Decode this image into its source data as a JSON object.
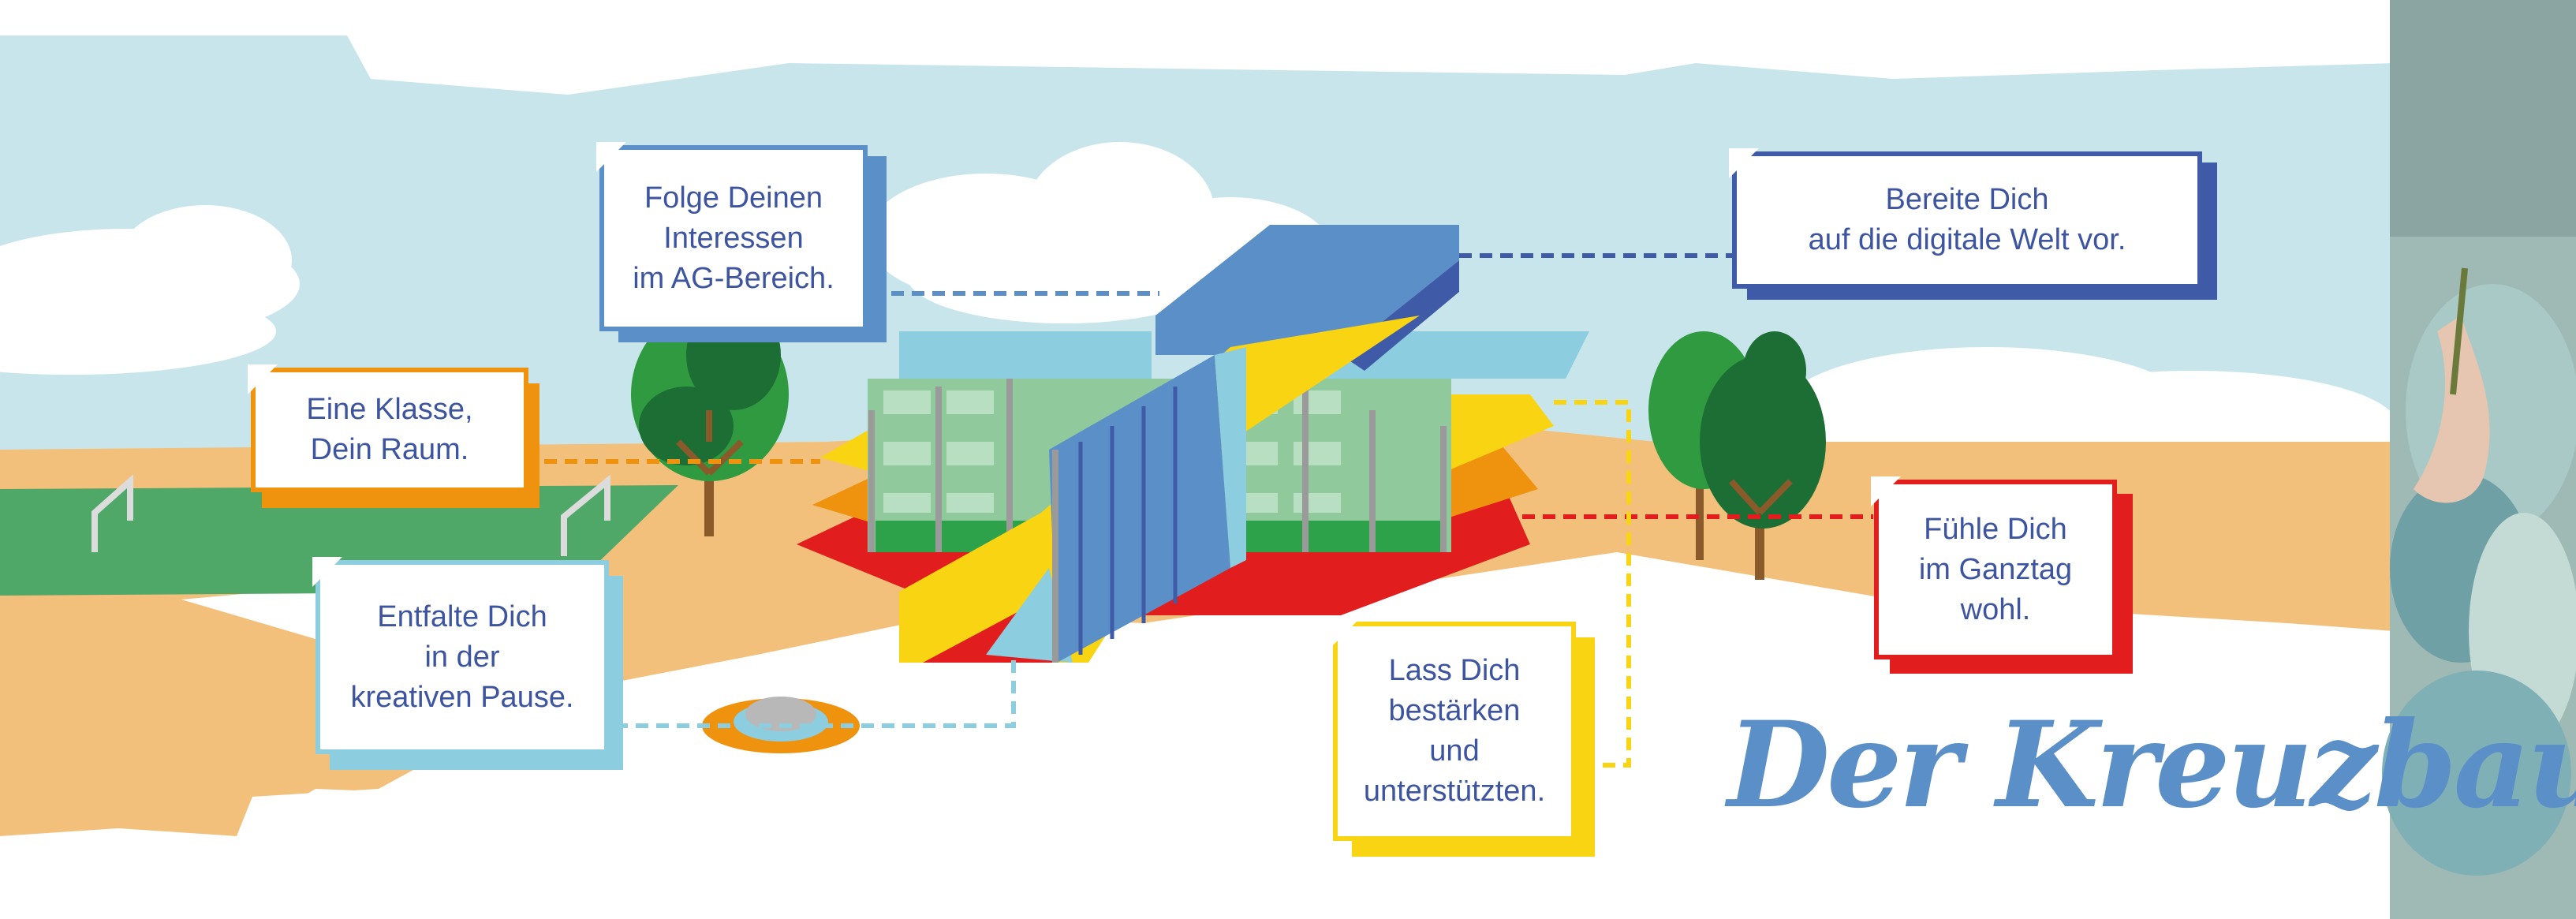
{
  "title": "Der Kreuzbau",
  "colors": {
    "sky": "#c9e5ec",
    "ground": "#f3c07c",
    "grass": "#4fa768",
    "orange": "#ef920e",
    "yellow": "#f9d412",
    "red": "#e21d1d",
    "light_blue": "#8dcde0",
    "mid_blue": "#5b8fc8",
    "dark_blue": "#3f5ba8",
    "text_blue": "#3d55a0"
  },
  "callouts": [
    {
      "id": "ag",
      "text": "Folge Deinen\nInteressen\nim AG-Bereich.",
      "color": "#5b8fc8"
    },
    {
      "id": "digital",
      "text": "Bereite Dich\nauf die digitale Welt vor.",
      "color": "#3f5ba8"
    },
    {
      "id": "klasse",
      "text": "Eine Klasse,\nDein Raum.",
      "color": "#ef920e"
    },
    {
      "id": "ganztag",
      "text": "Fühle Dich\nim Ganztag\nwohl.",
      "color": "#e21d1d"
    },
    {
      "id": "pause",
      "text": "Entfalte Dich\nin der\nkreativen Pause.",
      "color": "#8dcde0"
    },
    {
      "id": "staerken",
      "text": "Lass Dich\nbestärken\nund\nunterstützten.",
      "color": "#f9d412"
    }
  ]
}
